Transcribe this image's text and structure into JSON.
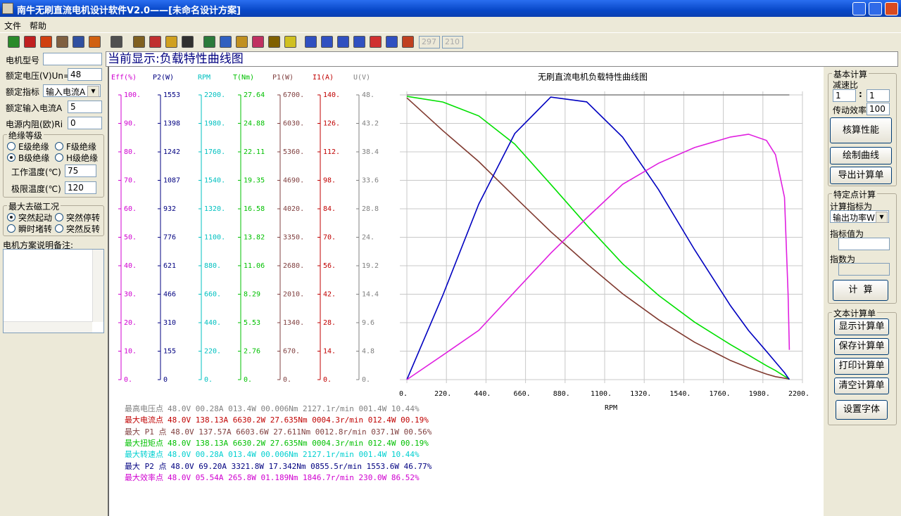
{
  "window": {
    "title": "南牛无刷直流电机设计软件V2.0——[未命名设计方案]"
  },
  "menu": [
    "文件",
    "帮助"
  ],
  "toolbar": {
    "disabled_fields": [
      297,
      210
    ]
  },
  "left_panel": {
    "fields": [
      {
        "label": "电机型号"
      },
      {
        "label": "额定电压(V)Un=",
        "value": 48
      },
      {
        "label": "额定指标",
        "value": "输入电流A"
      },
      {
        "label": "额定输入电流A",
        "value": 5
      },
      {
        "label": "电源内阻(欧)Ri",
        "value": 0
      }
    ],
    "insulation": {
      "title": "绝缘等级",
      "options": [
        "E级绝缘",
        "F级绝缘",
        "B级绝缘",
        "H级绝缘"
      ],
      "selected": 2,
      "temps": [
        {
          "label": "工作温度(℃)",
          "value": 75
        },
        {
          "label": "极限温度(℃)",
          "value": 120
        }
      ]
    },
    "demag": {
      "title": "最大去磁工况",
      "options": [
        "突然起动",
        "突然停转",
        "瞬时堵转",
        "突然反转"
      ],
      "selected": 0
    },
    "notes_label": "电机方案说明备注:"
  },
  "header": "当前显示:负载特性曲线图",
  "chart_data": {
    "type": "line",
    "title": "无刷直流电机负载特性曲线图",
    "x_label": "RPM",
    "grid": true,
    "x": [
      0,
      200,
      400,
      600,
      800,
      1000,
      1200,
      1400,
      1600,
      1800,
      1900,
      2000,
      2050,
      2100,
      2120,
      2127
    ],
    "xlim": [
      0,
      2200
    ],
    "xticks": [
      {
        "value": 0,
        "label": "0."
      },
      {
        "value": 220,
        "label": "220."
      },
      {
        "value": 440,
        "label": "440."
      },
      {
        "value": 660,
        "label": "660."
      },
      {
        "value": 880,
        "label": "880."
      },
      {
        "value": 1100,
        "label": "1100."
      },
      {
        "value": 1320,
        "label": "1320."
      },
      {
        "value": 1540,
        "label": "1540."
      },
      {
        "value": 1760,
        "label": "1760."
      },
      {
        "value": 1980,
        "label": "1980."
      },
      {
        "value": 2200,
        "label": "2200."
      }
    ],
    "axes": [
      {
        "label": "Eff(%)",
        "color": "#d000d0",
        "ylim": [
          0,
          100
        ],
        "yticks": [
          {
            "value": 100,
            "label": "100."
          },
          {
            "value": 90,
            "label": "90."
          },
          {
            "value": 80,
            "label": "80."
          },
          {
            "value": 70,
            "label": "70."
          },
          {
            "value": 60,
            "label": "60."
          },
          {
            "value": 50,
            "label": "50."
          },
          {
            "value": 40,
            "label": "40."
          },
          {
            "value": 30,
            "label": "30."
          },
          {
            "value": 20,
            "label": "20."
          },
          {
            "value": 10,
            "label": "10."
          },
          {
            "value": 0,
            "label": "0."
          }
        ]
      },
      {
        "label": "P2(W)",
        "color": "#000080",
        "ylim": [
          0,
          1553
        ],
        "yticks": [
          1553,
          1398,
          1242,
          1087,
          932,
          776,
          621,
          466,
          310,
          155,
          0
        ]
      },
      {
        "label": "RPM",
        "color": "#00c0c0",
        "ylim": [
          0,
          2200
        ],
        "yticks": [
          {
            "value": 2200,
            "label": "2200."
          },
          {
            "value": 1980,
            "label": "1980."
          },
          {
            "value": 1760,
            "label": "1760."
          },
          {
            "value": 1540,
            "label": "1540."
          },
          {
            "value": 1320,
            "label": "1320."
          },
          {
            "value": 1100,
            "label": "1100."
          },
          {
            "value": 880,
            "label": "880."
          },
          {
            "value": 660,
            "label": "660."
          },
          {
            "value": 440,
            "label": "440."
          },
          {
            "value": 220,
            "label": "220."
          },
          {
            "value": 0,
            "label": "0."
          }
        ]
      },
      {
        "label": "T(Nm)",
        "color": "#00c000",
        "ylim": [
          0,
          27.64
        ],
        "yticks": [
          27.64,
          24.88,
          22.11,
          19.35,
          16.58,
          13.82,
          11.06,
          8.29,
          5.53,
          2.76,
          {
            "value": 0,
            "label": "0."
          }
        ]
      },
      {
        "label": "P1(W)",
        "color": "#804040",
        "ylim": [
          0,
          6700
        ],
        "yticks": [
          {
            "value": 6700,
            "label": "6700."
          },
          {
            "value": 6030,
            "label": "6030."
          },
          {
            "value": 5360,
            "label": "5360."
          },
          {
            "value": 4690,
            "label": "4690."
          },
          {
            "value": 4020,
            "label": "4020."
          },
          {
            "value": 3350,
            "label": "3350."
          },
          {
            "value": 2680,
            "label": "2680."
          },
          {
            "value": 2010,
            "label": "2010."
          },
          {
            "value": 1340,
            "label": "1340."
          },
          {
            "value": 670,
            "label": "670."
          },
          {
            "value": 0,
            "label": "0."
          }
        ]
      },
      {
        "label": "I1(A)",
        "color": "#c00000",
        "ylim": [
          0,
          140
        ],
        "yticks": [
          {
            "value": 140,
            "label": "140."
          },
          {
            "value": 126,
            "label": "126."
          },
          {
            "value": 112,
            "label": "112."
          },
          {
            "value": 98,
            "label": "98."
          },
          {
            "value": 84,
            "label": "84."
          },
          {
            "value": 70,
            "label": "70."
          },
          {
            "value": 56,
            "label": "56."
          },
          {
            "value": 42,
            "label": "42."
          },
          {
            "value": 28,
            "label": "28."
          },
          {
            "value": 14,
            "label": "14."
          },
          {
            "value": 0,
            "label": "0."
          }
        ]
      },
      {
        "label": "U(V)",
        "color": "#808080",
        "ylim": [
          0,
          48
        ],
        "yticks": [
          {
            "value": 48,
            "label": "48."
          },
          43.2,
          38.4,
          33.6,
          28.8,
          {
            "value": 24,
            "label": "24."
          },
          19.2,
          14.4,
          9.6,
          4.8,
          {
            "value": 0,
            "label": "0."
          }
        ]
      }
    ],
    "series": [
      {
        "axis": 6,
        "color": "#808080",
        "values": [
          48,
          48,
          48,
          48,
          48,
          48,
          48,
          48,
          48,
          48,
          48,
          48,
          48,
          48,
          48,
          48
        ]
      },
      {
        "axis": 4,
        "color": "#803a30",
        "values": [
          6630,
          5860,
          5130,
          4300,
          3480,
          2730,
          2020,
          1410,
          880,
          450,
          280,
          130,
          70,
          35,
          20,
          13.4
        ]
      },
      {
        "axis": 3,
        "color": "#00e000",
        "values": [
          27.5,
          26.95,
          25.6,
          22.86,
          18.96,
          15.0,
          11.25,
          8.18,
          5.58,
          3.4,
          2.38,
          1.35,
          0.88,
          0.33,
          0.14,
          0.006
        ]
      },
      {
        "axis": 1,
        "color": "#0000c0",
        "values": [
          0,
          460,
          958,
          1342,
          1541,
          1515,
          1323,
          1036,
          709,
          403,
          268,
          154,
          96,
          38,
          10,
          1.4
        ]
      },
      {
        "axis": 0,
        "color": "#e020e0",
        "values": [
          0,
          8.6,
          17.3,
          30.9,
          44.4,
          56.8,
          68.6,
          76,
          81.5,
          85.2,
          86.2,
          84,
          79,
          64,
          30,
          10.44
        ]
      }
    ]
  },
  "result_lines": [
    {
      "label": "最高电压点",
      "text": "48.0V 00.28A 013.4W 00.006Nm 2127.1r/min 001.4W 10.44%",
      "color": "#808080"
    },
    {
      "label": "最大电流点",
      "text": "48.0V 138.13A 6630.2W 27.635Nm 0004.3r/min 012.4W 00.19%",
      "color": "#c00000"
    },
    {
      "label": "最大 P1 点",
      "text": "48.0V 137.57A 6603.6W 27.611Nm 0012.8r/min 037.1W 00.56%",
      "color": "#804040"
    },
    {
      "label": "最大扭矩点",
      "text": "48.0V 138.13A 6630.2W 27.635Nm 0004.3r/min 012.4W 00.19%",
      "color": "#00c000"
    },
    {
      "label": "最大转速点",
      "text": "48.0V 00.28A 013.4W 00.006Nm 2127.1r/min 001.4W 10.44%",
      "color": "#00d0d0"
    },
    {
      "label": "最大 P2 点",
      "text": "48.0V 69.20A 3321.8W 17.342Nm 0855.5r/min 1553.6W 46.77%",
      "color": "#000080"
    },
    {
      "label": "最大效率点",
      "text": "48.0V 05.54A 265.8W 01.189Nm 1846.7r/min 230.0W 86.52%",
      "color": "#d000d0"
    }
  ],
  "right_panel": {
    "basic": {
      "title": "基本计算",
      "ratio_label": "减速比",
      "ratio_values": [
        1,
        1
      ],
      "ratio_sep": ":",
      "efficiency_label": "传动效率",
      "efficiency_value": 100,
      "buttons": [
        "核算性能",
        "绘制曲线",
        "导出计算单"
      ]
    },
    "point": {
      "title": "特定点计算",
      "indicator_label": "计算指标为",
      "indicator_value": "输出功率W",
      "value_label": "指标值为",
      "result_label": "指数为",
      "button": "计  算"
    },
    "text": {
      "title": "文本计算单",
      "buttons": [
        "显示计算单",
        "保存计算单",
        "打印计算单",
        "清空计算单",
        "设置字体"
      ]
    }
  }
}
